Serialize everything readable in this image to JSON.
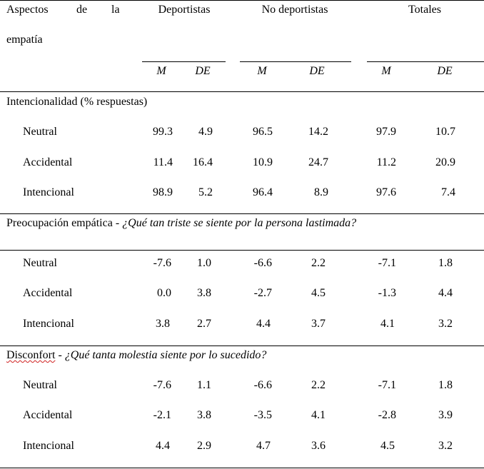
{
  "header": {
    "first_col_line1": [
      "Aspectos",
      "de",
      "la"
    ],
    "first_col_line2": "empatía",
    "groups": [
      "Deportistas",
      "No deportistas",
      "Totales"
    ],
    "stat_m": "M",
    "stat_de": "DE"
  },
  "sections": [
    {
      "title": "Intencionalidad (% respuestas)",
      "question": "",
      "rows": [
        {
          "label": "Neutral",
          "values": [
            "99.3",
            "4.9",
            "96.5",
            "14.2",
            "97.9",
            "10.7"
          ]
        },
        {
          "label": "Accidental",
          "values": [
            "11.4",
            "16.4",
            "10.9",
            "24.7",
            "11.2",
            "20.9"
          ]
        },
        {
          "label": "Intencional",
          "values": [
            "98.9",
            "5.2",
            "96.4",
            "8.9",
            "97.6",
            "7.4"
          ]
        }
      ]
    },
    {
      "title": "Preocupación empática - ",
      "question": "¿Qué tan triste se siente por la persona lastimada?",
      "rows": [
        {
          "label": "Neutral",
          "values": [
            "-7.6",
            "1.0",
            "-6.6",
            "2.2",
            "-7.1",
            "1.8"
          ]
        },
        {
          "label": "Accidental",
          "values": [
            "0.0",
            "3.8",
            "-2.7",
            "4.5",
            "-1.3",
            "4.4"
          ]
        },
        {
          "label": "Intencional",
          "values": [
            "3.8",
            "2.7",
            "4.4",
            "3.7",
            "4.1",
            "3.2"
          ]
        }
      ]
    },
    {
      "title": "Disconfort",
      "title_suffix": " - ",
      "question": "¿Qué tanta molestia siente por lo sucedido?",
      "rows": [
        {
          "label": "Neutral",
          "values": [
            "-7.6",
            "1.1",
            "-6.6",
            "2.2",
            "-7.1",
            "1.8"
          ]
        },
        {
          "label": "Accidental",
          "values": [
            "-2.1",
            "3.8",
            "-3.5",
            "4.1",
            "-2.8",
            "3.9"
          ]
        },
        {
          "label": "Intencional",
          "values": [
            "4.4",
            "2.9",
            "4.7",
            "3.6",
            "4.5",
            "3.2"
          ]
        }
      ]
    }
  ]
}
